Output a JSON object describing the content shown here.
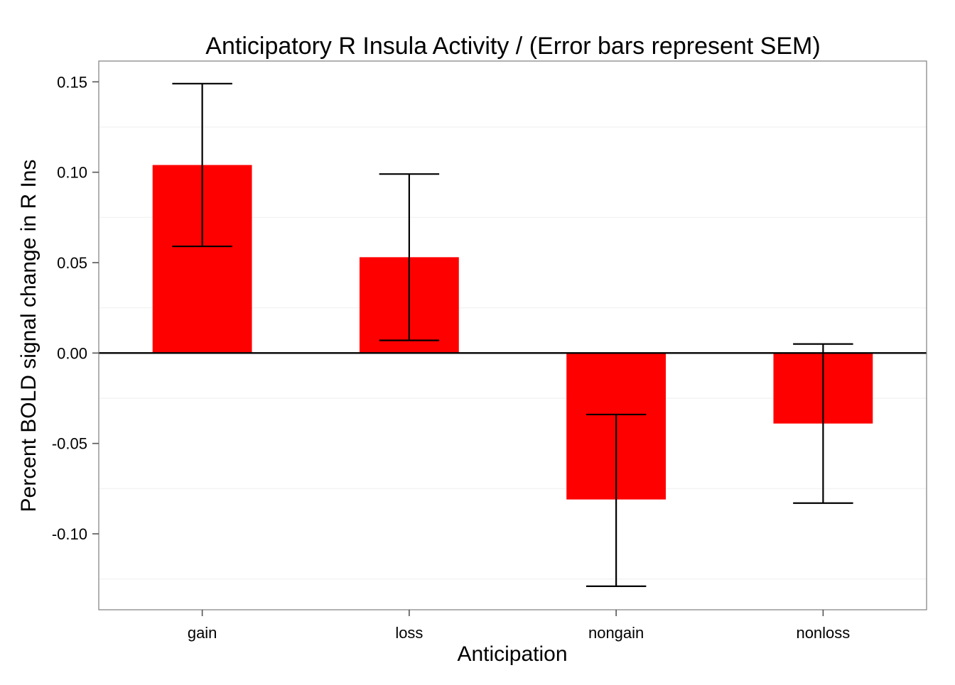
{
  "chart_data": {
    "type": "bar",
    "title": "Anticipatory R Insula Activity / (Error bars represent SEM)",
    "xlabel": "Anticipation",
    "ylabel": "Percent BOLD signal change in R Ins",
    "categories": [
      "gain",
      "loss",
      "nongain",
      "nonloss"
    ],
    "values": [
      0.104,
      0.053,
      -0.081,
      -0.039
    ],
    "error_bars": [
      {
        "low": 0.059,
        "high": 0.149
      },
      {
        "low": 0.007,
        "high": 0.099
      },
      {
        "low": -0.129,
        "high": -0.034
      },
      {
        "low": -0.083,
        "high": 0.005
      }
    ],
    "ylim": [
      -0.142,
      0.1615
    ],
    "yticks": [
      0.15,
      0.1,
      0.05,
      0.0,
      -0.05,
      -0.1
    ],
    "ytick_labels": [
      "0.15",
      "0.10",
      "0.05",
      "0.00",
      "-0.05",
      "-0.10"
    ],
    "grid": true,
    "legend": "none",
    "bar_color": "#ff0000",
    "zero_line_color": "#000000",
    "errorbar_color": "#000000"
  }
}
